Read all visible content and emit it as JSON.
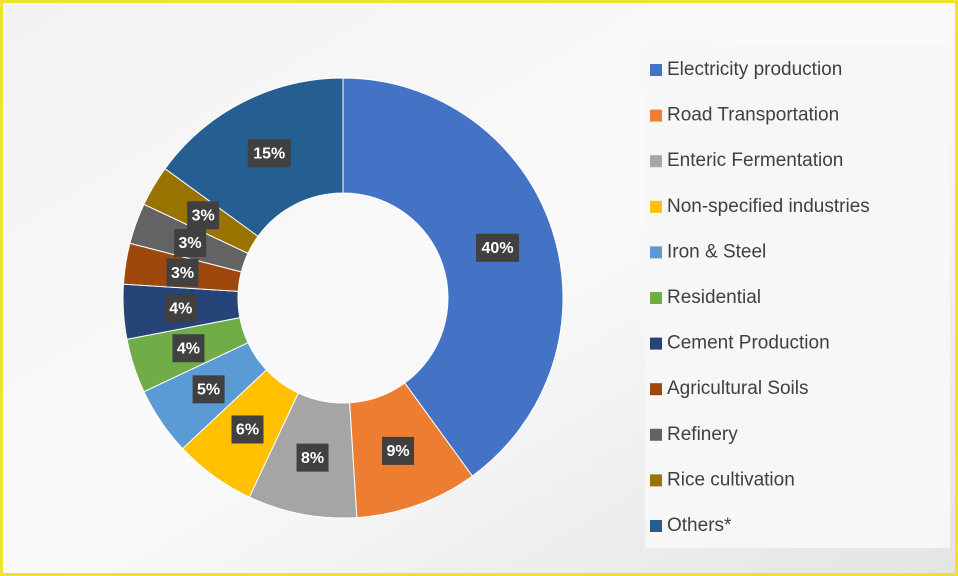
{
  "chart_data": {
    "type": "donut",
    "categories": [
      "Electricity production",
      "Road Transportation",
      "Enteric Fermentation",
      "Non-specified industries",
      "Iron & Steel",
      "Residential",
      "Cement Production",
      "Agricultural Soils",
      "Refinery",
      "Rice cultivation",
      "Others*"
    ],
    "values": [
      40,
      9,
      8,
      6,
      5,
      4,
      4,
      3,
      3,
      3,
      15
    ],
    "value_labels": [
      "40%",
      "9%",
      "8%",
      "6%",
      "5%",
      "4%",
      "4%",
      "3%",
      "3%",
      "3%",
      "15%"
    ],
    "colors": [
      "#4472c4",
      "#ed7d31",
      "#a5a5a5",
      "#ffc000",
      "#5b9bd5",
      "#70ad47",
      "#264478",
      "#9e480e",
      "#636363",
      "#997300",
      "#255e91"
    ],
    "legend": "right"
  }
}
